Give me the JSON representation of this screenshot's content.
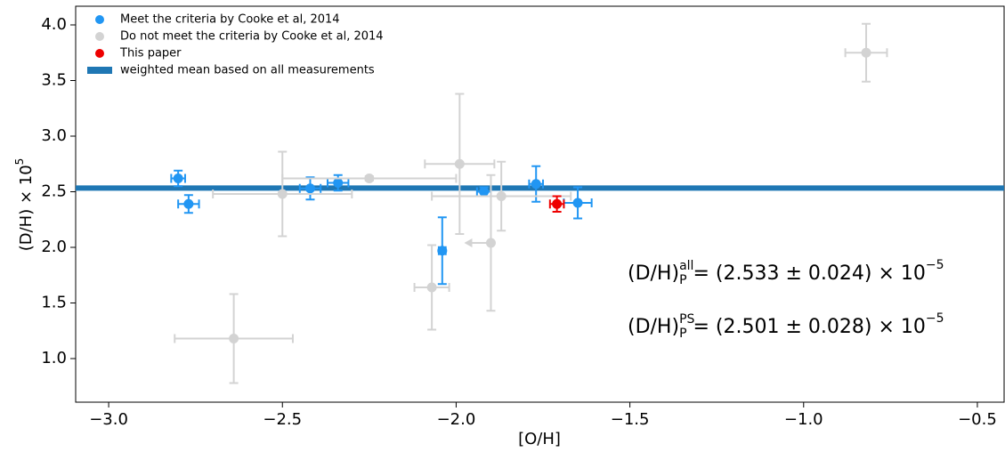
{
  "chart_data": {
    "type": "scatter",
    "x_label": "[O/H]",
    "y_label": {
      "text": "(D/H) × 10",
      "sup": "5"
    },
    "xlim": [
      -3.095,
      -0.423
    ],
    "ylim": [
      0.608,
      4.168
    ],
    "xticks": [
      {
        "value": -3.0,
        "label": "−3.0"
      },
      {
        "value": -2.5,
        "label": "−2.5"
      },
      {
        "value": -2.0,
        "label": "−2.0"
      },
      {
        "value": -1.5,
        "label": "−1.5"
      },
      {
        "value": -1.0,
        "label": "−1.0"
      },
      {
        "value": -0.5,
        "label": "−0.5"
      }
    ],
    "yticks": [
      {
        "value": 1.0,
        "label": "1.0"
      },
      {
        "value": 1.5,
        "label": "1.5"
      },
      {
        "value": 2.0,
        "label": "2.0"
      },
      {
        "value": 2.5,
        "label": "2.5"
      },
      {
        "value": 3.0,
        "label": "3.0"
      },
      {
        "value": 3.5,
        "label": "3.5"
      },
      {
        "value": 4.0,
        "label": "4.0"
      }
    ],
    "legend": "upper left",
    "series": [
      {
        "name": "Meet the criteria by Cooke et al, 2014",
        "color": "#2196f3",
        "points": [
          {
            "x": -2.8,
            "y": 2.62,
            "xerr": 0.02,
            "yerr": 0.07
          },
          {
            "x": -2.77,
            "y": 2.39,
            "xerr": 0.03,
            "yerr": 0.08
          },
          {
            "x": -2.42,
            "y": 2.53,
            "xerr": 0.03,
            "yerr": 0.1
          },
          {
            "x": -2.34,
            "y": 2.58,
            "xerr": 0.03,
            "yerr": 0.07
          },
          {
            "x": -2.04,
            "y": 1.97,
            "xerr": 0.01,
            "yerr": 0.3
          },
          {
            "x": -1.92,
            "y": 2.5,
            "xerr": 0.02,
            "yerr": 0.04
          },
          {
            "x": -1.77,
            "y": 2.57,
            "xerr": 0.02,
            "yerr": 0.16
          },
          {
            "x": -1.65,
            "y": 2.4,
            "xerr": 0.04,
            "yerr": 0.14
          }
        ]
      },
      {
        "name": "Do not meet the criteria by Cooke et al, 2014",
        "color": "#d3d3d3",
        "points": [
          {
            "x": -0.82,
            "y": 3.75,
            "xerr": 0.06,
            "yerr": 0.26
          },
          {
            "x": -2.5,
            "y": 2.48,
            "xerr": 0.2,
            "yerr": 0.38
          },
          {
            "x": -2.25,
            "y": 2.62,
            "xerr": 0.25,
            "yerr": 0.02
          },
          {
            "x": -1.99,
            "y": 2.75,
            "xerr": 0.1,
            "yerr": 0.63
          },
          {
            "x": -1.87,
            "y": 2.46,
            "xerr": 0.2,
            "yerr": 0.31
          },
          {
            "x": -1.9,
            "y": 2.04,
            "xerr": 0.0,
            "yerr": 0.61,
            "x_upper_limit": true
          },
          {
            "x": -2.07,
            "y": 1.64,
            "xerr": 0.05,
            "yerr": 0.38
          },
          {
            "x": -2.64,
            "y": 1.18,
            "xerr": 0.17,
            "yerr": 0.4
          }
        ]
      },
      {
        "name": "This paper",
        "color": "#ee0000",
        "points": [
          {
            "x": -1.71,
            "y": 2.39,
            "xerr": 0.02,
            "yerr": 0.07
          }
        ]
      }
    ],
    "mean_line": {
      "name": "weighted mean based on all measurements",
      "color": "#1f77b4",
      "value": 2.533
    },
    "annotations": [
      {
        "base": "(D/H)",
        "sub": "P",
        "sup": "all",
        "rest": " = (2.533 ± 0.024) × 10",
        "exp": "−5"
      },
      {
        "base": "(D/H)",
        "sub": "P",
        "sup": "PS",
        "rest": " = (2.501 ± 0.028) × 10",
        "exp": "−5"
      }
    ]
  }
}
